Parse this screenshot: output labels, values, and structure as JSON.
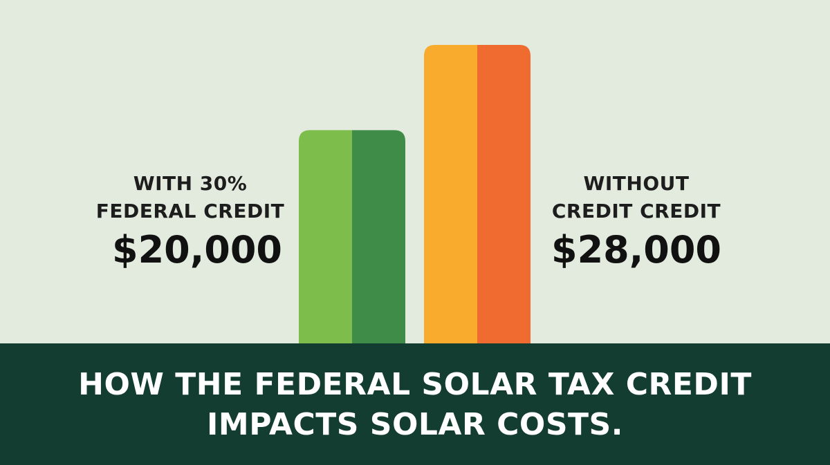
{
  "chart_data": {
    "type": "bar",
    "title": "HOW THE FEDERAL SOLAR TAX CREDIT IMPACTS SOLAR COSTS.",
    "categories": [
      "WITH 30%\nFEDERAL CREDIT",
      "WITHOUT\nCREDIT CREDIT"
    ],
    "values": [
      20000,
      28000
    ],
    "value_labels": [
      "$20,000",
      "$28,000"
    ],
    "colors": [
      [
        "#7dbd4b",
        "#3f8b48"
      ],
      [
        "#f8ab2c",
        "#f06b2f"
      ]
    ]
  }
}
